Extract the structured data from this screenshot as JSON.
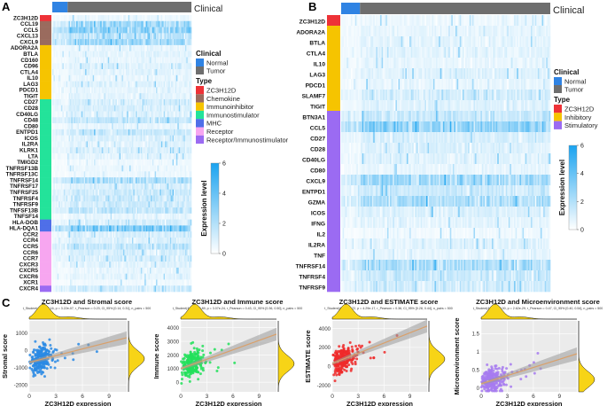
{
  "panels": {
    "A": "A",
    "B": "B",
    "C": "C"
  },
  "clinical_label": "Clinical",
  "legend_a": {
    "clinical_title": "Clinical",
    "clinical_items": [
      {
        "label": "Normal",
        "color": "#2f83e3"
      },
      {
        "label": "Tumor",
        "color": "#6e6e6e"
      }
    ],
    "type_title": "Type",
    "type_items": [
      {
        "label": "ZC3H12D",
        "color": "#ee3237"
      },
      {
        "label": "Chemokine",
        "color": "#9a6b5e"
      },
      {
        "label": "Immunoinhibitor",
        "color": "#f6c400"
      },
      {
        "label": "Immunostimulator",
        "color": "#23e39a"
      },
      {
        "label": "MHC",
        "color": "#4f6fe8"
      },
      {
        "label": "Receptor",
        "color": "#f7a6f0"
      },
      {
        "label": "Receptor/Immunostimulator",
        "color": "#9b6bf2"
      }
    ],
    "colorbar_title": "Expression level",
    "colorbar_ticks": [
      "6",
      "4",
      "2",
      "0"
    ]
  },
  "legend_b": {
    "clinical_title": "Clinical",
    "clinical_items": [
      {
        "label": "Normal",
        "color": "#2f83e3"
      },
      {
        "label": "Tumor",
        "color": "#6e6e6e"
      }
    ],
    "type_title": "Type",
    "type_items": [
      {
        "label": "ZC3H12D",
        "color": "#ee3237"
      },
      {
        "label": "Inhibitory",
        "color": "#f6c400"
      },
      {
        "label": "Stimulatory",
        "color": "#9b6bf2"
      }
    ],
    "colorbar_title": "Expression level",
    "colorbar_ticks": [
      "6",
      "4",
      "2",
      "0"
    ]
  },
  "heatmap_a": {
    "genes": [
      "ZC3H12D",
      "CCL19",
      "CCL5",
      "CXCL13",
      "CXCL9",
      "ADORA2A",
      "BTLA",
      "CD160",
      "CD96",
      "CTLA4",
      "IL10",
      "LAG3",
      "PDCD1",
      "TIGIT",
      "CD27",
      "CD28",
      "CD40LG",
      "CD48",
      "CD80",
      "ENTPD1",
      "ICOS",
      "IL2RA",
      "KLRK1",
      "LTA",
      "TMIGD2",
      "TNFRSF13B",
      "TNFRSF13C",
      "TNFRSF14",
      "TNFRSF17",
      "TNFRSF25",
      "TNFRSF4",
      "TNFRSF9",
      "TNFSF13B",
      "TNFSF14",
      "HLA-DOB",
      "HLA-DQA1",
      "CCR2",
      "CCR4",
      "CCR5",
      "CCR6",
      "CCR7",
      "CXCR3",
      "CXCR5",
      "CXCR6",
      "XCR1",
      "CXCR4"
    ],
    "types": [
      "ZC3H12D",
      "Chemokine",
      "Chemokine",
      "Chemokine",
      "Chemokine",
      "Immunoinhibitor",
      "Immunoinhibitor",
      "Immunoinhibitor",
      "Immunoinhibitor",
      "Immunoinhibitor",
      "Immunoinhibitor",
      "Immunoinhibitor",
      "Immunoinhibitor",
      "Immunoinhibitor",
      "Immunostimulator",
      "Immunostimulator",
      "Immunostimulator",
      "Immunostimulator",
      "Immunostimulator",
      "Immunostimulator",
      "Immunostimulator",
      "Immunostimulator",
      "Immunostimulator",
      "Immunostimulator",
      "Immunostimulator",
      "Immunostimulator",
      "Immunostimulator",
      "Immunostimulator",
      "Immunostimulator",
      "Immunostimulator",
      "Immunostimulator",
      "Immunostimulator",
      "Immunostimulator",
      "Immunostimulator",
      "MHC",
      "MHC",
      "Receptor",
      "Receptor",
      "Receptor",
      "Receptor",
      "Receptor",
      "Receptor",
      "Receptor",
      "Receptor",
      "Receptor",
      "Receptor/Immunostimulator"
    ],
    "levels": [
      0.5,
      2.2,
      2.8,
      1.8,
      2.4,
      0.6,
      0.7,
      0.6,
      0.9,
      0.7,
      0.6,
      0.8,
      0.6,
      0.7,
      1.1,
      1.0,
      0.8,
      1.6,
      0.6,
      1.3,
      0.9,
      0.8,
      1.0,
      0.7,
      0.4,
      0.5,
      0.5,
      2.0,
      1.0,
      1.2,
      1.4,
      1.2,
      1.6,
      0.6,
      1.0,
      3.2,
      1.0,
      0.9,
      1.5,
      1.0,
      1.1,
      0.8,
      0.6,
      0.7,
      0.4,
      1.2
    ]
  },
  "heatmap_b": {
    "genes": [
      "ZC3H12D",
      "ADORA2A",
      "BTLA",
      "CTLA4",
      "IL10",
      "LAG3",
      "PDCD1",
      "SLAMF7",
      "TIGIT",
      "BTN3A1",
      "CCL5",
      "CD27",
      "CD28",
      "CD40LG",
      "CD80",
      "CXCL9",
      "ENTPD1",
      "GZMA",
      "ICOS",
      "IFNG",
      "IL2",
      "IL2RA",
      "TNF",
      "TNFRSF14",
      "TNFRSF4",
      "TNFRSF9"
    ],
    "types": [
      "ZC3H12D",
      "Inhibitory",
      "Inhibitory",
      "Inhibitory",
      "Inhibitory",
      "Inhibitory",
      "Inhibitory",
      "Inhibitory",
      "Inhibitory",
      "Stimulatory",
      "Stimulatory",
      "Stimulatory",
      "Stimulatory",
      "Stimulatory",
      "Stimulatory",
      "Stimulatory",
      "Stimulatory",
      "Stimulatory",
      "Stimulatory",
      "Stimulatory",
      "Stimulatory",
      "Stimulatory",
      "Stimulatory",
      "Stimulatory",
      "Stimulatory",
      "Stimulatory"
    ],
    "levels": [
      0.5,
      0.6,
      0.7,
      0.7,
      0.6,
      0.8,
      0.6,
      1.1,
      0.8,
      1.4,
      2.8,
      1.0,
      0.9,
      0.8,
      0.6,
      2.3,
      1.3,
      2.0,
      0.9,
      0.7,
      0.4,
      0.8,
      0.6,
      2.0,
      1.4,
      1.2
    ]
  },
  "chart_data": [
    {
      "type": "scatter",
      "title": "ZC3H12D and Stromal score",
      "stats": "t_Student(498) = 5.16, p = 3.22e-07, r_Pearson = 0.23, CI_95% [0.14, 0.31], n_pairs = 500",
      "xlabel": "ZC3H12D expression",
      "ylabel": "Stromal score",
      "xticks": [
        0,
        3,
        6,
        9
      ],
      "yticks": [
        -2000,
        -1000,
        0,
        1000
      ],
      "xlim": [
        0,
        11
      ],
      "ylim": [
        -2400,
        1700
      ],
      "intercept": -700,
      "slope": 130,
      "color": "#2a8ae4",
      "marginal_color": "#f7d417"
    },
    {
      "type": "scatter",
      "title": "ZC3H12D and Immune score",
      "stats": "t_Student(498) = 10.89, p = 3.07e-24, r_Pearson = 0.43, CI_95% [0.36, 0.50], n_pairs = 500",
      "xlabel": "ZC3H12D expression",
      "ylabel": "Immune score",
      "xticks": [
        0,
        3,
        6,
        9
      ],
      "yticks": [
        0,
        1000,
        2000,
        3000,
        4000
      ],
      "xlim": [
        0,
        11
      ],
      "ylim": [
        -700,
        4500
      ],
      "intercept": 1000,
      "slope": 230,
      "color": "#22e05b",
      "marginal_color": "#f7d417"
    },
    {
      "type": "scatter",
      "title": "ZC3H12D and ESTIMATE score",
      "stats": "t_Student(498) = 8.72, p = 4.29e-17, r_Pearson = 0.36, CI_95% [0.28, 0.44], n_pairs = 500",
      "xlabel": "ZC3H12D expression",
      "ylabel": "ESTIMATE score",
      "xticks": [
        0,
        3,
        6,
        9
      ],
      "yticks": [
        -2000,
        0,
        2000,
        4000
      ],
      "xlim": [
        0,
        11
      ],
      "ylim": [
        -2700,
        4800
      ],
      "intercept": 300,
      "slope": 360,
      "color": "#ee2a2a",
      "marginal_color": "#f7d417"
    },
    {
      "type": "scatter",
      "title": "ZC3H12D and Microenvironment score",
      "stats": "t_Student(498) = 12.00, p = 2.62e-29, r_Pearson = 0.47, CI_95% [0.40, 0.54], n_pairs = 500",
      "xlabel": "ZC3H12D expression",
      "ylabel": "Microenvironment score",
      "xticks": [
        0,
        3,
        6,
        9
      ],
      "yticks": [
        0.0,
        0.5,
        1.0,
        1.5
      ],
      "xlim": [
        0,
        11
      ],
      "ylim": [
        -0.1,
        1.85
      ],
      "intercept": 0.12,
      "slope": 0.075,
      "color": "#a77bf0",
      "marginal_color": "#f7d417"
    }
  ]
}
